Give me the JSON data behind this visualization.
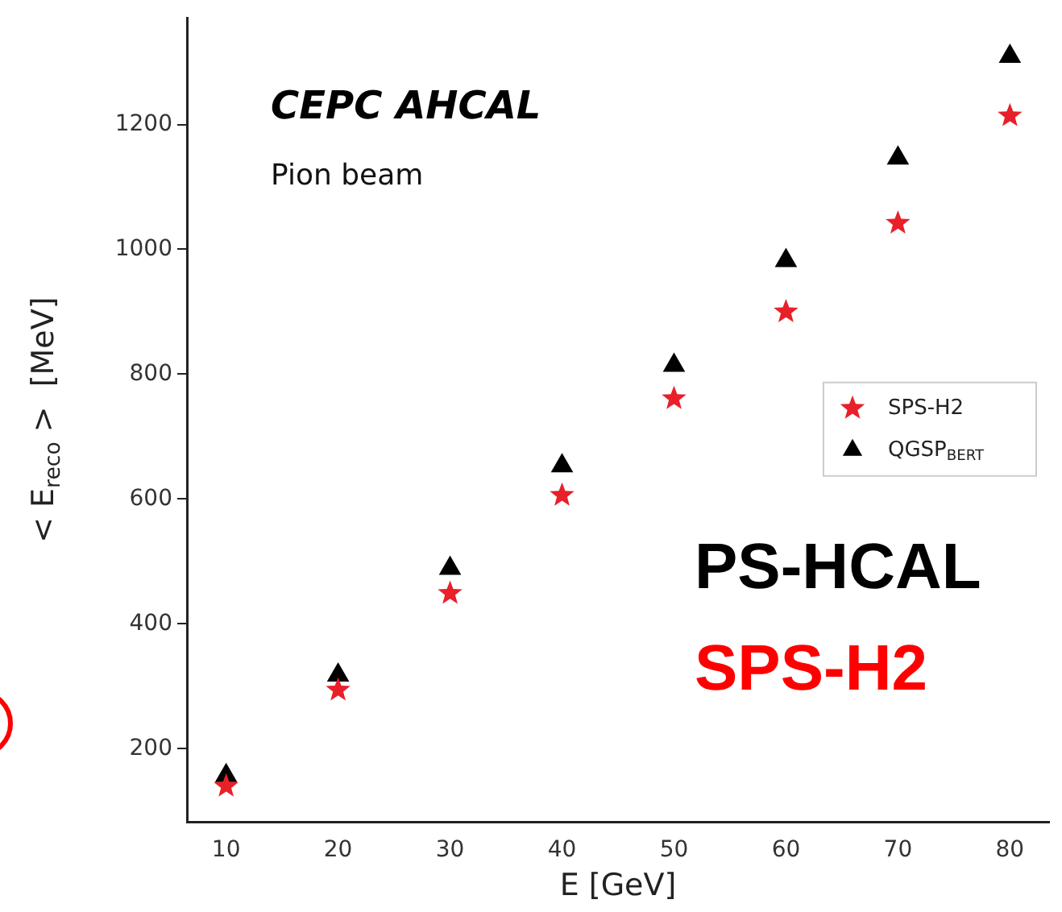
{
  "chart_data": {
    "type": "scatter",
    "xlabel": "E [GeV]",
    "ylabel": "< E$_{reco}$ >  [MeV]",
    "x": [
      10,
      20,
      30,
      40,
      50,
      60,
      70,
      80
    ],
    "series": [
      {
        "name": "SPS-H2",
        "color": "#e8202a",
        "marker": "star",
        "values": [
          140,
          294,
          449,
          606,
          761,
          900,
          1042,
          1214
        ]
      },
      {
        "name": "QGSP$_{BERT}$",
        "color": "#000000",
        "marker": "triangle",
        "values": [
          157,
          318,
          489,
          653,
          814,
          982,
          1146,
          1309
        ]
      }
    ],
    "xlim": [
      6.5,
      83.5
    ],
    "ylim": [
      82,
      1370
    ],
    "xticks": [
      10,
      20,
      30,
      40,
      50,
      60,
      70,
      80
    ],
    "yticks": [
      200,
      400,
      600,
      800,
      1000,
      1200
    ],
    "legend": "right",
    "grid": false,
    "title": "CEPC AHCAL",
    "subtitle": "Pion beam",
    "annotations": [
      "PS-HCAL",
      "SPS-H2"
    ]
  }
}
